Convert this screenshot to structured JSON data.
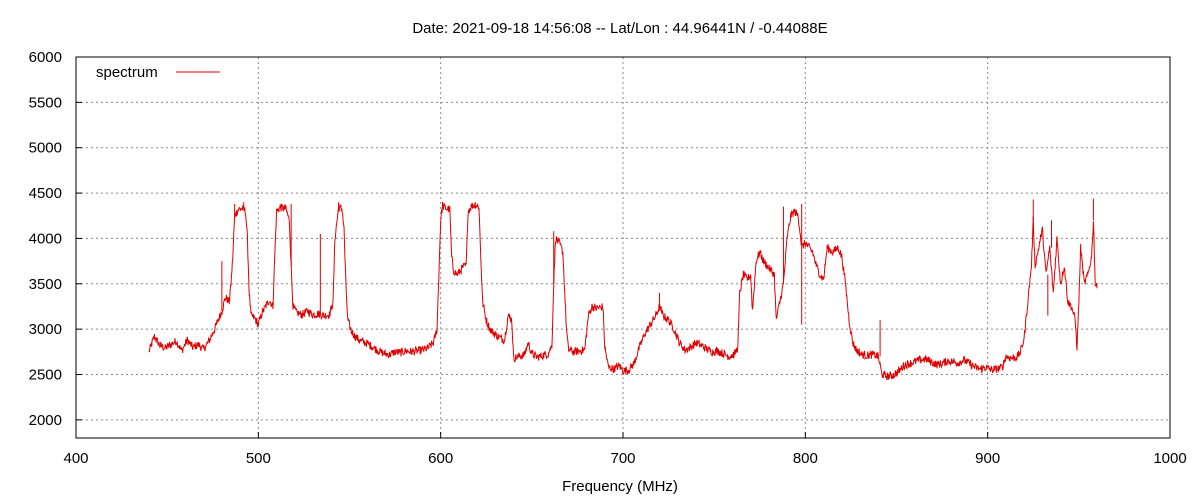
{
  "chart_data": {
    "type": "line",
    "title": "Date: 2021-09-18 14:56:08  --  Lat/Lon : 44.96441N / -0.44088E",
    "xlabel": "Frequency (MHz)",
    "ylabel": "",
    "xlim": [
      400,
      1000
    ],
    "ylim": [
      1800,
      6000
    ],
    "x_ticks": [
      400,
      500,
      600,
      700,
      800,
      900,
      1000
    ],
    "y_ticks": [
      2000,
      2500,
      3000,
      3500,
      4000,
      4500,
      5000,
      5500,
      6000
    ],
    "grid": true,
    "legend_position": "top-left",
    "series": [
      {
        "name": "spectrum",
        "color": "#e00000",
        "points": [
          [
            440,
            2750
          ],
          [
            443,
            2920
          ],
          [
            446,
            2820
          ],
          [
            449,
            2790
          ],
          [
            452,
            2830
          ],
          [
            455,
            2870
          ],
          [
            458,
            2760
          ],
          [
            461,
            2880
          ],
          [
            464,
            2800
          ],
          [
            467,
            2830
          ],
          [
            470,
            2780
          ],
          [
            473,
            2870
          ],
          [
            476,
            3000
          ],
          [
            478,
            3100
          ],
          [
            480,
            3200
          ],
          [
            482,
            3350
          ],
          [
            484,
            3300
          ],
          [
            485,
            3500
          ],
          [
            486,
            3800
          ],
          [
            487,
            4250
          ],
          [
            489,
            4320
          ],
          [
            491,
            4330
          ],
          [
            493,
            4300
          ],
          [
            494,
            4000
          ],
          [
            495,
            3400
          ],
          [
            496,
            3150
          ],
          [
            498,
            3120
          ],
          [
            500,
            3050
          ],
          [
            502,
            3180
          ],
          [
            504,
            3250
          ],
          [
            506,
            3320
          ],
          [
            508,
            3250
          ],
          [
            509,
            3800
          ],
          [
            510,
            4300
          ],
          [
            512,
            4340
          ],
          [
            515,
            4330
          ],
          [
            517,
            4200
          ],
          [
            518,
            3700
          ],
          [
            519,
            3250
          ],
          [
            521,
            3180
          ],
          [
            524,
            3160
          ],
          [
            527,
            3200
          ],
          [
            530,
            3160
          ],
          [
            533,
            3170
          ],
          [
            536,
            3150
          ],
          [
            539,
            3160
          ],
          [
            541,
            3300
          ],
          [
            542,
            4000
          ],
          [
            544,
            4340
          ],
          [
            546,
            4320
          ],
          [
            547,
            4100
          ],
          [
            548,
            3500
          ],
          [
            549,
            3100
          ],
          [
            551,
            2980
          ],
          [
            553,
            2920
          ],
          [
            556,
            2870
          ],
          [
            560,
            2840
          ],
          [
            563,
            2800
          ],
          [
            566,
            2760
          ],
          [
            569,
            2730
          ],
          [
            572,
            2720
          ],
          [
            575,
            2750
          ],
          [
            578,
            2740
          ],
          [
            581,
            2760
          ],
          [
            584,
            2750
          ],
          [
            587,
            2760
          ],
          [
            590,
            2770
          ],
          [
            593,
            2790
          ],
          [
            596,
            2850
          ],
          [
            598,
            3000
          ],
          [
            599,
            3600
          ],
          [
            600,
            4200
          ],
          [
            601,
            4360
          ],
          [
            603,
            4330
          ],
          [
            605,
            4320
          ],
          [
            606,
            3800
          ],
          [
            607,
            3650
          ],
          [
            609,
            3600
          ],
          [
            611,
            3650
          ],
          [
            612,
            3680
          ],
          [
            614,
            3700
          ],
          [
            615,
            4300
          ],
          [
            617,
            4360
          ],
          [
            619,
            4370
          ],
          [
            621,
            4350
          ],
          [
            622,
            3800
          ],
          [
            623,
            3300
          ],
          [
            625,
            3100
          ],
          [
            627,
            3000
          ],
          [
            630,
            2940
          ],
          [
            633,
            2900
          ],
          [
            635,
            2880
          ],
          [
            637,
            3150
          ],
          [
            639,
            3100
          ],
          [
            640,
            2680
          ],
          [
            643,
            2700
          ],
          [
            646,
            2720
          ],
          [
            648,
            2850
          ],
          [
            650,
            2730
          ],
          [
            653,
            2690
          ],
          [
            656,
            2710
          ],
          [
            659,
            2730
          ],
          [
            661,
            2820
          ],
          [
            662,
            3500
          ],
          [
            663,
            4000
          ],
          [
            665,
            3950
          ],
          [
            667,
            3850
          ],
          [
            669,
            3000
          ],
          [
            670,
            2780
          ],
          [
            673,
            2750
          ],
          [
            676,
            2760
          ],
          [
            679,
            2770
          ],
          [
            681,
            3150
          ],
          [
            683,
            3250
          ],
          [
            685,
            3230
          ],
          [
            688,
            3240
          ],
          [
            689,
            3250
          ],
          [
            690,
            2800
          ],
          [
            692,
            2580
          ],
          [
            695,
            2560
          ],
          [
            698,
            2600
          ],
          [
            700,
            2540
          ],
          [
            703,
            2550
          ],
          [
            706,
            2620
          ],
          [
            709,
            2800
          ],
          [
            712,
            2950
          ],
          [
            715,
            3050
          ],
          [
            718,
            3150
          ],
          [
            720,
            3250
          ],
          [
            722,
            3150
          ],
          [
            725,
            3100
          ],
          [
            728,
            3000
          ],
          [
            731,
            2850
          ],
          [
            734,
            2770
          ],
          [
            737,
            2800
          ],
          [
            740,
            2850
          ],
          [
            743,
            2820
          ],
          [
            746,
            2780
          ],
          [
            749,
            2750
          ],
          [
            752,
            2760
          ],
          [
            755,
            2730
          ],
          [
            758,
            2700
          ],
          [
            761,
            2720
          ],
          [
            763,
            2800
          ],
          [
            764,
            3400
          ],
          [
            766,
            3600
          ],
          [
            768,
            3550
          ],
          [
            770,
            3600
          ],
          [
            771,
            3200
          ],
          [
            773,
            3750
          ],
          [
            775,
            3850
          ],
          [
            777,
            3750
          ],
          [
            779,
            3700
          ],
          [
            781,
            3650
          ],
          [
            783,
            3600
          ],
          [
            784,
            3100
          ],
          [
            786,
            3300
          ],
          [
            788,
            3500
          ],
          [
            790,
            4000
          ],
          [
            792,
            4250
          ],
          [
            794,
            4300
          ],
          [
            796,
            4250
          ],
          [
            797,
            4100
          ],
          [
            798,
            3900
          ],
          [
            800,
            3950
          ],
          [
            802,
            3900
          ],
          [
            804,
            3850
          ],
          [
            806,
            3700
          ],
          [
            808,
            3600
          ],
          [
            810,
            3550
          ],
          [
            812,
            3900
          ],
          [
            815,
            3850
          ],
          [
            818,
            3900
          ],
          [
            820,
            3800
          ],
          [
            822,
            3500
          ],
          [
            824,
            3100
          ],
          [
            826,
            2850
          ],
          [
            828,
            2770
          ],
          [
            831,
            2720
          ],
          [
            834,
            2710
          ],
          [
            837,
            2720
          ],
          [
            840,
            2700
          ],
          [
            842,
            2500
          ],
          [
            845,
            2480
          ],
          [
            848,
            2490
          ],
          [
            851,
            2530
          ],
          [
            854,
            2600
          ],
          [
            857,
            2620
          ],
          [
            860,
            2640
          ],
          [
            863,
            2660
          ],
          [
            866,
            2670
          ],
          [
            869,
            2640
          ],
          [
            872,
            2610
          ],
          [
            875,
            2620
          ],
          [
            878,
            2650
          ],
          [
            881,
            2640
          ],
          [
            884,
            2630
          ],
          [
            887,
            2660
          ],
          [
            890,
            2620
          ],
          [
            893,
            2580
          ],
          [
            896,
            2560
          ],
          [
            899,
            2580
          ],
          [
            902,
            2550
          ],
          [
            905,
            2560
          ],
          [
            908,
            2580
          ],
          [
            910,
            2700
          ],
          [
            913,
            2680
          ],
          [
            916,
            2690
          ],
          [
            918,
            2750
          ],
          [
            920,
            2900
          ],
          [
            922,
            3300
          ],
          [
            924,
            3700
          ],
          [
            925,
            4200
          ],
          [
            926,
            3700
          ],
          [
            928,
            3900
          ],
          [
            930,
            4100
          ],
          [
            932,
            3600
          ],
          [
            934,
            3900
          ],
          [
            936,
            3400
          ],
          [
            938,
            4000
          ],
          [
            940,
            3500
          ],
          [
            942,
            3700
          ],
          [
            944,
            3300
          ],
          [
            946,
            3250
          ],
          [
            948,
            3100
          ],
          [
            949,
            2800
          ],
          [
            950,
            3300
          ],
          [
            951,
            3900
          ],
          [
            953,
            3500
          ],
          [
            955,
            3600
          ],
          [
            957,
            3800
          ],
          [
            958,
            4200
          ],
          [
            959,
            3500
          ],
          [
            960,
            3450
          ]
        ],
        "spikes": [
          [
            480,
            3750
          ],
          [
            487,
            4380
          ],
          [
            492,
            4400
          ],
          [
            512,
            4380
          ],
          [
            518,
            4380
          ],
          [
            534,
            4050
          ],
          [
            544,
            4400
          ],
          [
            601,
            4400
          ],
          [
            619,
            4400
          ],
          [
            662,
            4080
          ],
          [
            720,
            3400
          ],
          [
            788,
            4350
          ],
          [
            798,
            4380
          ],
          [
            798,
            3050
          ],
          [
            841,
            3100
          ],
          [
            925,
            4430
          ],
          [
            935,
            4200
          ],
          [
            958,
            4440
          ],
          [
            949,
            2780
          ],
          [
            933,
            3150
          ]
        ]
      }
    ]
  }
}
